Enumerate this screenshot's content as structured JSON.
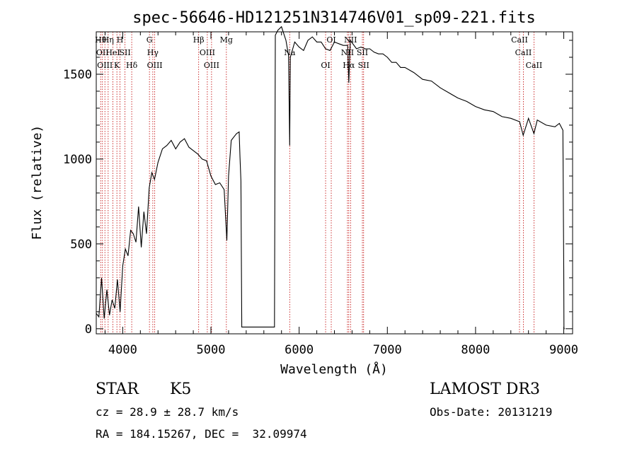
{
  "chart_data": {
    "type": "line",
    "title": "spec-56646-HD121251N314746V01_sp09-221.fits",
    "xlabel": "Wavelength (Å)",
    "ylabel": "Flux (relative)",
    "xlim": [
      3700,
      9100
    ],
    "ylim": [
      -30,
      1750
    ],
    "x_ticks": [
      4000,
      5000,
      6000,
      7000,
      8000,
      9000
    ],
    "y_ticks": [
      0,
      500,
      1000,
      1500
    ],
    "grid": false,
    "series": [
      {
        "x": [
          3700,
          3730,
          3760,
          3790,
          3820,
          3850,
          3880,
          3910,
          3940,
          3970,
          4000,
          4030,
          4060,
          4090,
          4120,
          4150,
          4180,
          4210,
          4240,
          4270,
          4300,
          4330,
          4360,
          4400,
          4450,
          4500,
          4550,
          4600,
          4650,
          4700,
          4750,
          4800,
          4850,
          4900,
          4950,
          5000,
          5050,
          5100,
          5150,
          5180,
          5200,
          5230,
          5260,
          5290,
          5320,
          5330,
          5340,
          5350,
          5720,
          5730,
          5760,
          5800,
          5850,
          5880,
          5893,
          5900,
          5950,
          6000,
          6050,
          6100,
          6150,
          6200,
          6250,
          6300,
          6350,
          6400,
          6450,
          6500,
          6550,
          6563,
          6580,
          6650,
          6700,
          6750,
          6800,
          6850,
          6900,
          6950,
          7000,
          7050,
          7100,
          7150,
          7200,
          7300,
          7400,
          7500,
          7600,
          7700,
          7800,
          7900,
          8000,
          8100,
          8200,
          8300,
          8400,
          8500,
          8540,
          8600,
          8662,
          8700,
          8800,
          8900,
          8950,
          8990,
          9000,
          9002,
          9010
        ],
        "y": [
          90,
          70,
          300,
          60,
          230,
          80,
          170,
          120,
          290,
          100,
          370,
          470,
          430,
          580,
          560,
          510,
          720,
          480,
          690,
          560,
          830,
          920,
          880,
          980,
          1060,
          1080,
          1110,
          1060,
          1100,
          1120,
          1070,
          1050,
          1030,
          1000,
          990,
          900,
          850,
          860,
          820,
          520,
          900,
          1110,
          1130,
          1150,
          1160,
          1010,
          870,
          10,
          10,
          1730,
          1760,
          1780,
          1700,
          1610,
          1080,
          1600,
          1690,
          1660,
          1640,
          1700,
          1720,
          1690,
          1690,
          1650,
          1640,
          1690,
          1680,
          1670,
          1670,
          1450,
          1700,
          1650,
          1660,
          1650,
          1650,
          1630,
          1620,
          1620,
          1600,
          1570,
          1570,
          1540,
          1540,
          1510,
          1470,
          1460,
          1420,
          1390,
          1360,
          1340,
          1310,
          1290,
          1280,
          1250,
          1240,
          1220,
          1140,
          1240,
          1150,
          1230,
          1200,
          1190,
          1210,
          1170,
          350,
          0,
          0
        ],
        "color": "#000000"
      }
    ],
    "line_marks": [
      {
        "x": 3750,
        "label": "Hθ"
      },
      {
        "x": 3770,
        "label": "OII"
      },
      {
        "x": 3798,
        "label": "OIII"
      },
      {
        "x": 3835,
        "label": "Hη"
      },
      {
        "x": 3889,
        "label": "HeI"
      },
      {
        "x": 3934,
        "label": "K"
      },
      {
        "x": 3969,
        "label": "H"
      },
      {
        "x": 4026,
        "label": "SII"
      },
      {
        "x": 4102,
        "label": "Hδ"
      },
      {
        "x": 4303,
        "label": "G"
      },
      {
        "x": 4341,
        "label": "Hγ"
      },
      {
        "x": 4363,
        "label": "OIII"
      },
      {
        "x": 4861,
        "label": "Hβ"
      },
      {
        "x": 4959,
        "label": "OIII"
      },
      {
        "x": 5007,
        "label": "OIII"
      },
      {
        "x": 5175,
        "label": "Mg"
      },
      {
        "x": 5893,
        "label": "Na"
      },
      {
        "x": 6300,
        "label": "OI"
      },
      {
        "x": 6364,
        "label": "OI"
      },
      {
        "x": 6548,
        "label": "NII"
      },
      {
        "x": 6563,
        "label": "Hα"
      },
      {
        "x": 6583,
        "label": "NII"
      },
      {
        "x": 6717,
        "label": "SII"
      },
      {
        "x": 6731,
        "label": "SII"
      },
      {
        "x": 8498,
        "label": "CaII"
      },
      {
        "x": 8542,
        "label": "CaII"
      },
      {
        "x": 8662,
        "label": "CaII"
      }
    ]
  },
  "info": {
    "object_type": "STAR",
    "subclass": "K5",
    "survey": "LAMOST DR3",
    "cz": "cz = 28.9 ± 28.7 km/s",
    "obs_date": "Obs-Date: 20131219",
    "coords": "RA = 184.15267, DEC =  32.09974"
  }
}
